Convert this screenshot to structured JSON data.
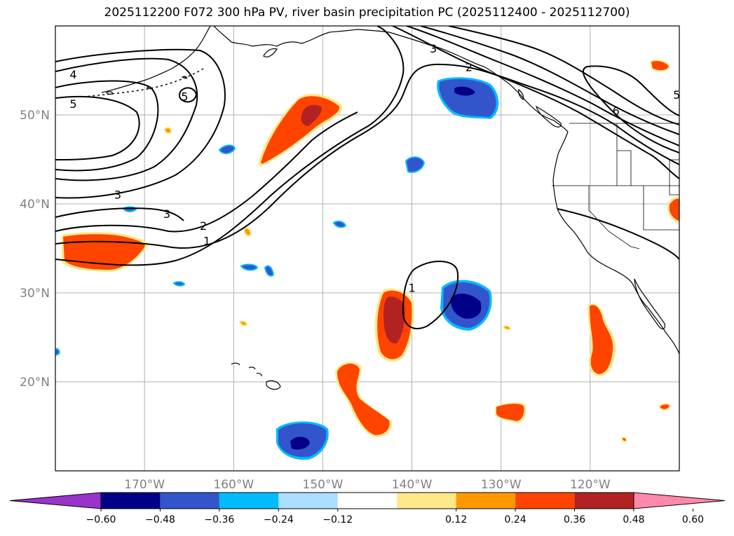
{
  "title": "2025112200 F072 300 hPa PV, river basin precipitation PC (2025112400 - 2025112700)",
  "map": {
    "lon_range": [
      -180,
      -110
    ],
    "lat_range": [
      10,
      60
    ],
    "lat_ticks": [
      {
        "value": 50,
        "label": "50°N"
      },
      {
        "value": 40,
        "label": "40°N"
      },
      {
        "value": 30,
        "label": "30°N"
      },
      {
        "value": 20,
        "label": "20°N"
      }
    ],
    "lon_ticks": [
      {
        "value": -170,
        "label": "170°W"
      },
      {
        "value": -160,
        "label": "160°W"
      },
      {
        "value": -150,
        "label": "150°W"
      },
      {
        "value": -140,
        "label": "140°W"
      },
      {
        "value": -130,
        "label": "130°W"
      },
      {
        "value": -120,
        "label": "120°W"
      }
    ],
    "pv_contour_labels": [
      {
        "text": "4",
        "lon": -178,
        "lat": 54.5
      },
      {
        "text": "5",
        "lon": -178,
        "lat": 51.2
      },
      {
        "text": "5",
        "lon": -165.5,
        "lat": 52.0
      },
      {
        "text": "3",
        "lon": -173,
        "lat": 41.0
      },
      {
        "text": "3",
        "lon": -167.5,
        "lat": 38.8
      },
      {
        "text": "2",
        "lon": -163.4,
        "lat": 37.5
      },
      {
        "text": "1",
        "lon": -163.0,
        "lat": 35.8
      },
      {
        "text": "3",
        "lon": -137.6,
        "lat": 57.4
      },
      {
        "text": "2",
        "lon": -133.6,
        "lat": 55.3
      },
      {
        "text": "1",
        "lon": -140.0,
        "lat": 30.5
      },
      {
        "text": "6",
        "lon": -117.1,
        "lat": 50.4
      },
      {
        "text": "5",
        "lon": -110.3,
        "lat": 52.2
      }
    ]
  },
  "colorbar": {
    "colors": [
      "#9933cc",
      "#000088",
      "#3355cc",
      "#00bbff",
      "#aaddff",
      "#ffffff",
      "#ffe888",
      "#ff9900",
      "#ff4400",
      "#b22222",
      "#ff88aa"
    ],
    "ticks": [
      "−0.60",
      "−0.48",
      "−0.36",
      "−0.24",
      "−0.12",
      "0.12",
      "0.24",
      "0.36",
      "0.48",
      "0.60"
    ]
  },
  "colors": {
    "grid": "#b0b0b0",
    "coast": "#000000",
    "contour": "#000000"
  }
}
